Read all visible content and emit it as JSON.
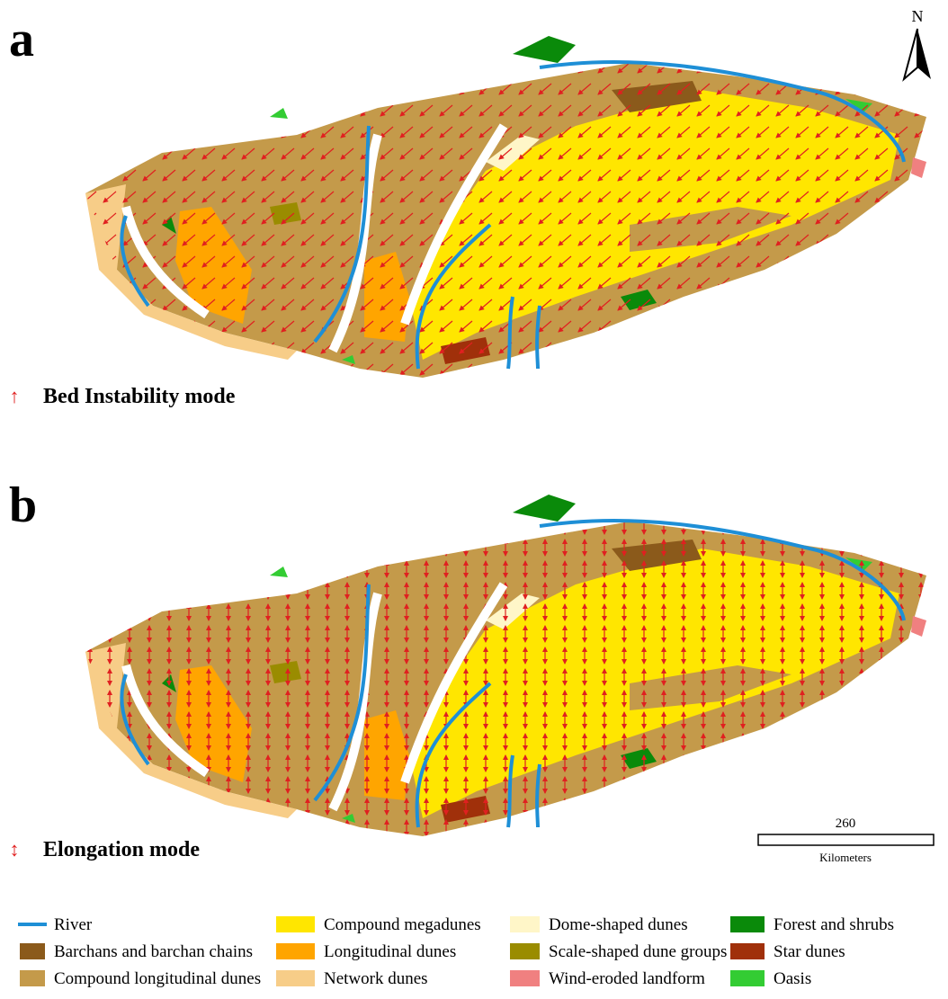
{
  "panels": [
    {
      "label": "a",
      "mode": "Bed Instability mode"
    },
    {
      "label": "b",
      "mode": "Elongation mode"
    }
  ],
  "north": "N",
  "scale": {
    "value": "260",
    "unit": "Kilometers"
  },
  "legend": [
    {
      "name": "River",
      "color": "#1e8fd6"
    },
    {
      "name": "Barchans and barchan chains",
      "color": "#8b5a1b"
    },
    {
      "name": "Compound longitudinal dunes",
      "color": "#c49a4a"
    },
    {
      "name": "Compound megadunes",
      "color": "#ffe600"
    },
    {
      "name": "Longitudinal dunes",
      "color": "#ffa500"
    },
    {
      "name": "Network dunes",
      "color": "#f7cd88"
    },
    {
      "name": "Dome-shaped dunes",
      "color": "#fff6c8"
    },
    {
      "name": "Scale-shaped dune groups",
      "color": "#9a8c00"
    },
    {
      "name": "Wind-eroded landform",
      "color": "#f08080"
    },
    {
      "name": "Forest and shrubs",
      "color": "#0a8a0a"
    },
    {
      "name": "Star dunes",
      "color": "#a0300a"
    },
    {
      "name": "Oasis",
      "color": "#33cc33"
    }
  ]
}
